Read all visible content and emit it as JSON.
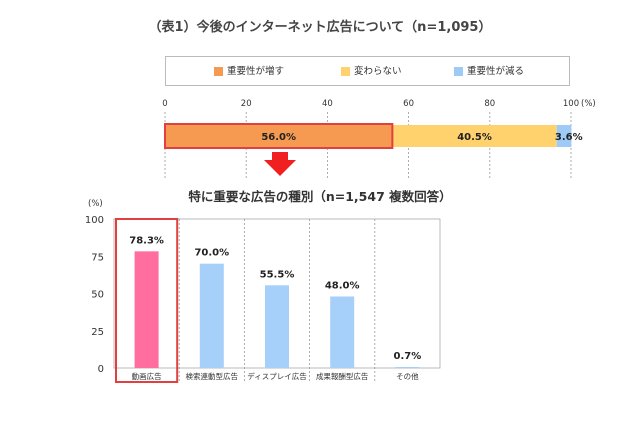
{
  "colors": {
    "increase": "#F59A50",
    "unchanged": "#FFD26E",
    "decrease": "#9DCBF5",
    "pink_bar": "#FF6E9E",
    "blue_bar": "#A6D0FA",
    "highlight": "#E04040",
    "arrow": "#F02020"
  },
  "chart_data": [
    {
      "type": "bar",
      "orientation": "horizontal-stacked",
      "title": "（表1）今後のインターネット広告について（n=1,095）",
      "unit_label": "(%)",
      "xlim": [
        0,
        100
      ],
      "ticks": [
        "0",
        "20",
        "40",
        "60",
        "80",
        "100"
      ],
      "tick_values": [
        0,
        20,
        40,
        60,
        80,
        100
      ],
      "series": [
        {
          "name": "重要性が増す",
          "values": [
            56.0
          ],
          "label": "56.0%",
          "color_key": "increase"
        },
        {
          "name": "変わらない",
          "values": [
            40.5
          ],
          "label": "40.5%",
          "color_key": "unchanged"
        },
        {
          "name": "重要性が減る",
          "values": [
            3.6
          ],
          "label": "3.6%",
          "color_key": "decrease"
        }
      ],
      "legend": "top"
    },
    {
      "type": "bar",
      "title": "特に重要な広告の種別（n=1,547 複数回答）",
      "ylabel": "(%)",
      "ylim": [
        0,
        100
      ],
      "yticks": [
        "100",
        "75",
        "50",
        "25",
        "0"
      ],
      "ytick_values": [
        100,
        75,
        50,
        25,
        0
      ],
      "categories": [
        "動画広告",
        "検索連動型広告",
        "ディスプレイ広告",
        "成果報酬型広告",
        "その他"
      ],
      "values": [
        78.3,
        70.0,
        55.5,
        48.0,
        0.7
      ],
      "value_labels": [
        "78.3%",
        "70.0%",
        "55.5%",
        "48.0%",
        "0.7%"
      ],
      "highlighted": "動画広告"
    }
  ]
}
